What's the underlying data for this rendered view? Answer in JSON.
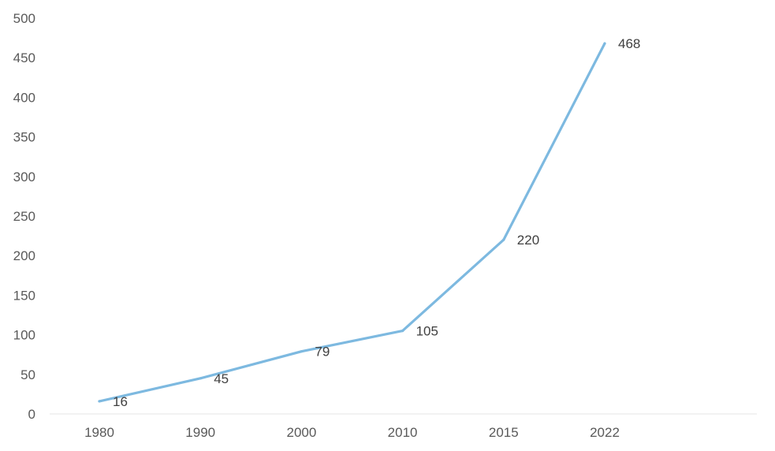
{
  "chart_data": {
    "type": "line",
    "categories": [
      "1980",
      "1990",
      "2000",
      "2010",
      "2015",
      "2022"
    ],
    "series": [
      {
        "values": [
          16,
          45,
          79,
          105,
          220,
          468
        ],
        "color": "#7db9e0"
      }
    ],
    "data_labels": [
      "16",
      "45",
      "79",
      "105",
      "220",
      "468"
    ],
    "ylim": [
      0,
      500
    ],
    "yticks": [
      0,
      50,
      100,
      150,
      200,
      250,
      300,
      350,
      400,
      450,
      500
    ],
    "grid": false,
    "legend": "none",
    "title": "",
    "xlabel": "",
    "ylabel": ""
  }
}
